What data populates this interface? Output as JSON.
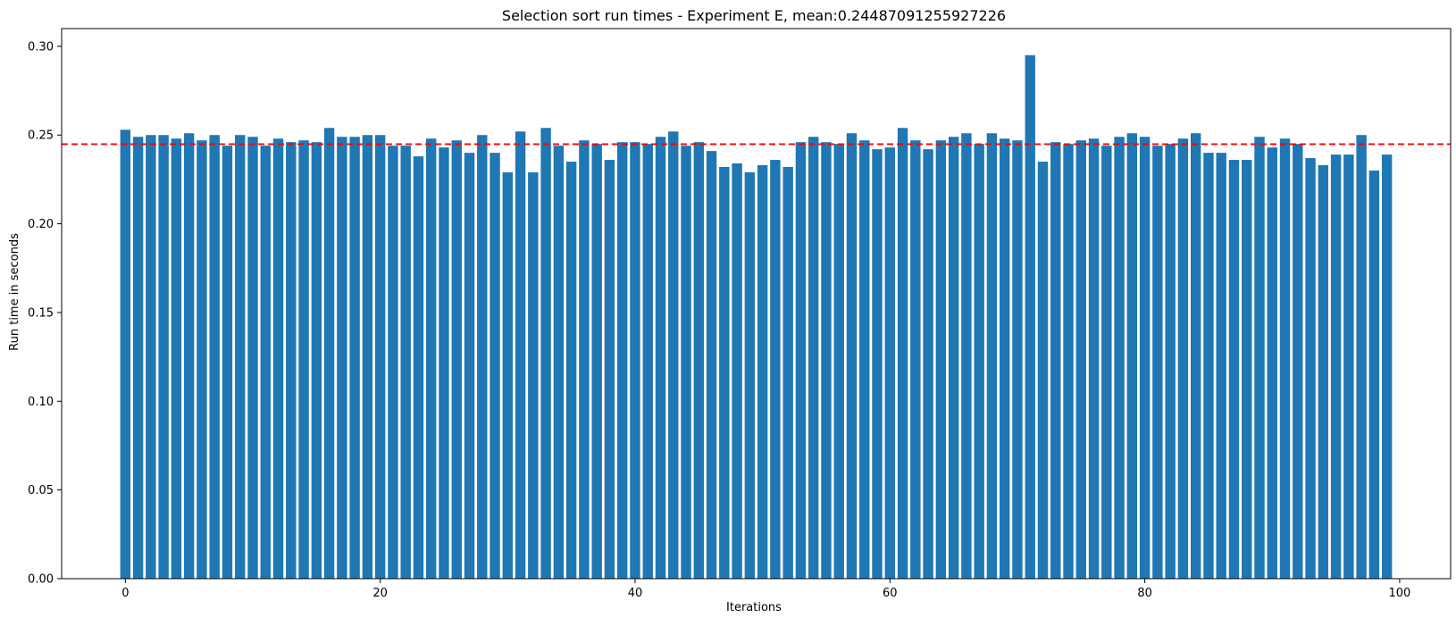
{
  "chart_data": {
    "type": "bar",
    "title": "Selection sort run times - Experiment E, mean:0.24487091255927226",
    "xlabel": "Iterations",
    "ylabel": "Run time in seconds",
    "xlim": [
      -5,
      104
    ],
    "ylim": [
      0,
      0.31
    ],
    "xticks": [
      0,
      20,
      40,
      60,
      80,
      100
    ],
    "xtick_labels": [
      "0",
      "20",
      "40",
      "60",
      "80",
      "100"
    ],
    "yticks": [
      0,
      0.05,
      0.1,
      0.15,
      0.2,
      0.25,
      0.3
    ],
    "ytick_labels": [
      "0.00",
      "0.05",
      "0.10",
      "0.15",
      "0.20",
      "0.25",
      "0.30"
    ],
    "grid": false,
    "bar_color": "#1f77b4",
    "mean_line": {
      "value": 0.24487091255927226,
      "color": "#ff0000",
      "style": "dashed"
    },
    "x": [
      0,
      1,
      2,
      3,
      4,
      5,
      6,
      7,
      8,
      9,
      10,
      11,
      12,
      13,
      14,
      15,
      16,
      17,
      18,
      19,
      20,
      21,
      22,
      23,
      24,
      25,
      26,
      27,
      28,
      29,
      30,
      31,
      32,
      33,
      34,
      35,
      36,
      37,
      38,
      39,
      40,
      41,
      42,
      43,
      44,
      45,
      46,
      47,
      48,
      49,
      50,
      51,
      52,
      53,
      54,
      55,
      56,
      57,
      58,
      59,
      60,
      61,
      62,
      63,
      64,
      65,
      66,
      67,
      68,
      69,
      70,
      71,
      72,
      73,
      74,
      75,
      76,
      77,
      78,
      79,
      80,
      81,
      82,
      83,
      84,
      85,
      86,
      87,
      88,
      89,
      90,
      91,
      92,
      93,
      94,
      95,
      96,
      97,
      98,
      99
    ],
    "values": [
      0.253,
      0.249,
      0.25,
      0.25,
      0.248,
      0.251,
      0.247,
      0.25,
      0.244,
      0.25,
      0.249,
      0.244,
      0.248,
      0.246,
      0.247,
      0.246,
      0.254,
      0.249,
      0.249,
      0.25,
      0.25,
      0.244,
      0.244,
      0.238,
      0.248,
      0.243,
      0.247,
      0.24,
      0.25,
      0.24,
      0.229,
      0.252,
      0.229,
      0.254,
      0.244,
      0.235,
      0.247,
      0.245,
      0.236,
      0.246,
      0.246,
      0.245,
      0.249,
      0.252,
      0.244,
      0.246,
      0.241,
      0.232,
      0.234,
      0.229,
      0.233,
      0.236,
      0.232,
      0.246,
      0.249,
      0.246,
      0.245,
      0.251,
      0.247,
      0.242,
      0.243,
      0.254,
      0.247,
      0.242,
      0.247,
      0.249,
      0.251,
      0.245,
      0.251,
      0.248,
      0.247,
      0.295,
      0.235,
      0.246,
      0.245,
      0.247,
      0.248,
      0.244,
      0.249,
      0.251,
      0.249,
      0.244,
      0.245,
      0.248,
      0.251,
      0.24,
      0.24,
      0.236,
      0.236,
      0.249,
      0.243,
      0.248,
      0.245,
      0.237,
      0.233,
      0.239,
      0.239,
      0.25,
      0.23,
      0.239
    ]
  }
}
